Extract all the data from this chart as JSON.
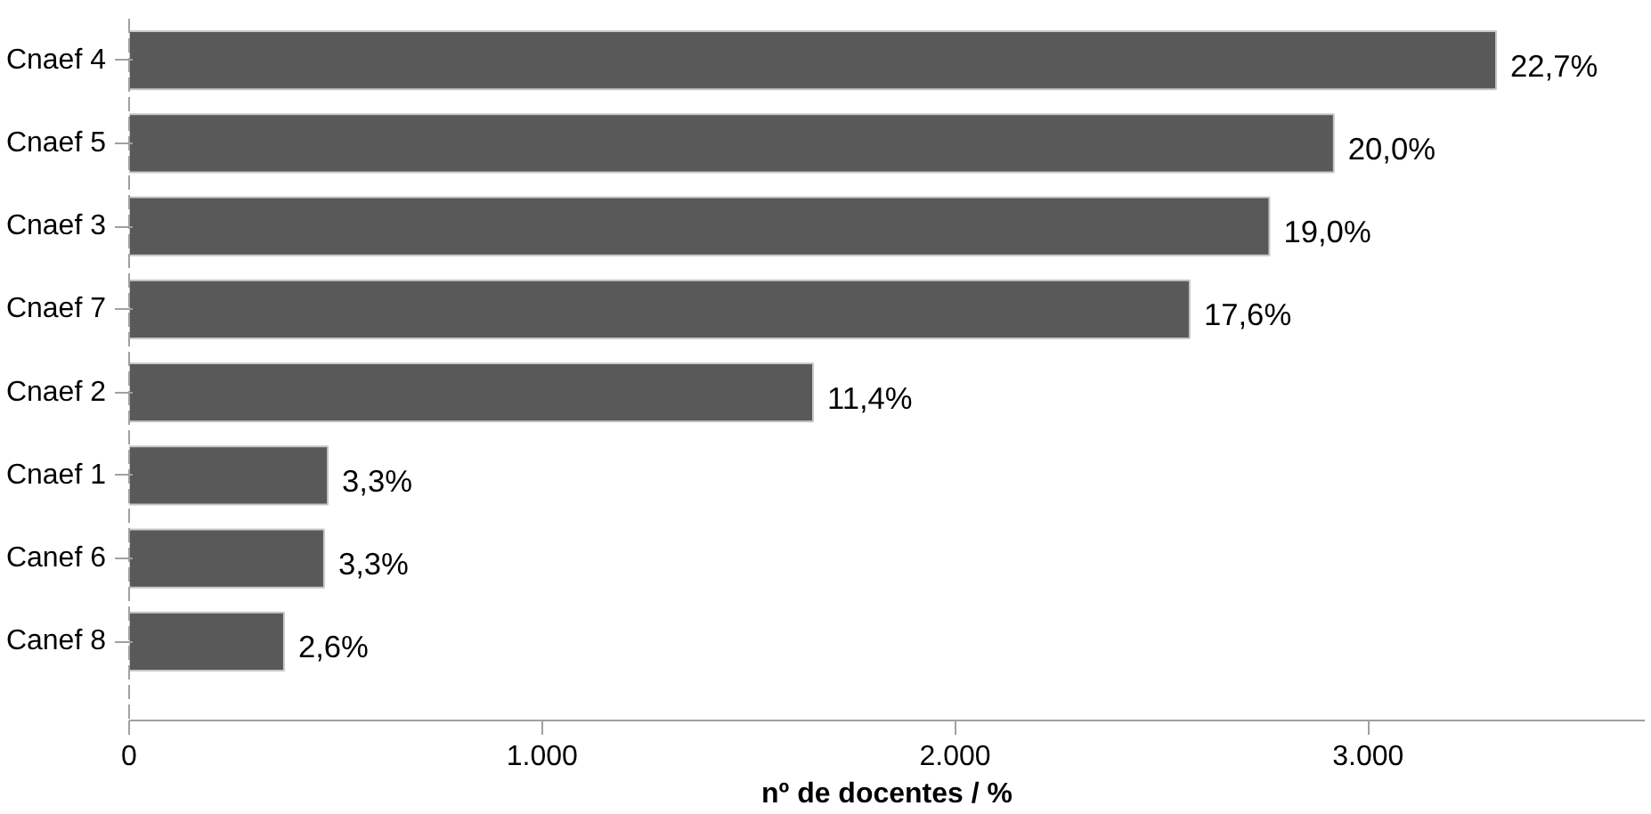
{
  "chart_data": {
    "type": "bar",
    "orientation": "horizontal",
    "xlabel": "nº de docentes / %",
    "categories": [
      "Cnaef 4",
      "Cnaef 5",
      "Cnaef 3",
      "Cnaef 7",
      "Cnaef 2",
      "Cnaef 1",
      "Canef 6",
      "Canef 8"
    ],
    "values": [
      3310,
      2917,
      2761,
      2568,
      1656,
      481,
      472,
      375
    ],
    "annotations": [
      {
        "text": "22,7%",
        "x": 3310,
        "y": "Cnaef 4"
      },
      {
        "text": "20,0%",
        "x": 2917,
        "y": "Cnaef 5"
      },
      {
        "text": "19,0%",
        "x": 2761,
        "y": "Cnaef 3"
      },
      {
        "text": "17,6%",
        "x": 2568,
        "y": "Cnaef 7"
      },
      {
        "text": "11,4%",
        "x": 1656,
        "y": "Cnaef 2"
      },
      {
        "text": "3,3%",
        "x": 481,
        "y": "Cnaef 1"
      },
      {
        "text": "3,3%",
        "x": 472,
        "y": "Canef 6"
      },
      {
        "text": "2,6%",
        "x": 375,
        "y": "Canef 8"
      }
    ],
    "color": "#595959",
    "xlim": [
      0,
      3670
    ],
    "xticks": [
      {
        "value": 0,
        "label": "0"
      },
      {
        "value": 1000,
        "label": "1.000"
      },
      {
        "value": 2000,
        "label": "2.000"
      },
      {
        "value": 3000,
        "label": "3.000"
      }
    ],
    "grid": false
  }
}
